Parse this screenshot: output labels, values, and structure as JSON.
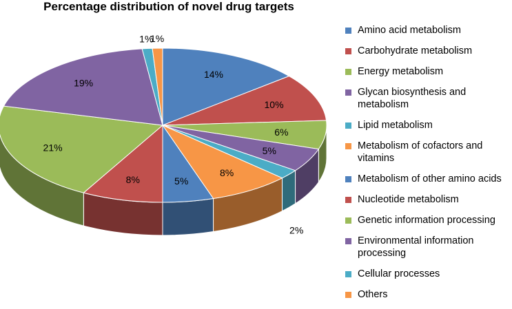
{
  "chart_data": {
    "type": "pie",
    "title": "Percentage distribution of novel drug targets",
    "categories": [
      "Amino acid metabolism",
      "Carbohydrate metabolism",
      "Energy metabolism",
      "Glycan biosynthesis and metabolism",
      "Lipid metabolism",
      "Metabolism of cofactors and vitamins",
      "Metabolism of other amino acids",
      "Nucleotide metabolism",
      "Genetic information processing",
      "Environmental information processing",
      "Cellular processes",
      "Others"
    ],
    "values": [
      14,
      10,
      6,
      5,
      2,
      8,
      5,
      8,
      21,
      19,
      1,
      1
    ],
    "data_labels": [
      "14%",
      "10%",
      "6%",
      "5%",
      "2%",
      "8%",
      "5%",
      "8%",
      "21%",
      "19%",
      "1%",
      "1%"
    ],
    "colors": [
      "#4F81BD",
      "#C0504D",
      "#9BBB59",
      "#8064A2",
      "#4BACC6",
      "#F79646",
      "#4F81BD",
      "#C0504D",
      "#9BBB59",
      "#8064A2",
      "#4BACC6",
      "#F79646"
    ],
    "legend_position": "right",
    "style": "3d"
  }
}
